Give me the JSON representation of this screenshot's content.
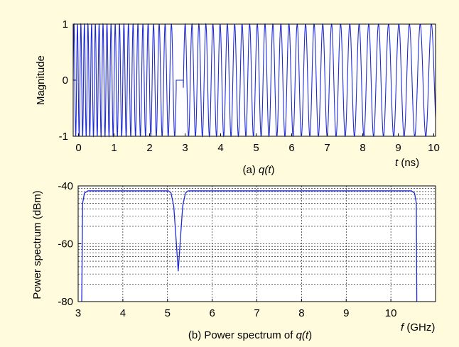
{
  "colors": {
    "background": "#fffbdc",
    "plot_bg": "#ffffff",
    "signal": "#1f2bd6",
    "grid": "#000000"
  },
  "chart_data": [
    {
      "id": "time",
      "type": "line",
      "caption_prefix": "(a) ",
      "caption_fn": "q(",
      "caption_var": "t",
      "caption_close": ")",
      "ylabel": "Magnitude",
      "xlabel_var": "t",
      "xlabel_unit": " (ns)",
      "xlim": [
        -0.15,
        10.05
      ],
      "ylim": [
        -1,
        1
      ],
      "x_ticks": [
        "0",
        "1",
        "2",
        "3",
        "4",
        "5",
        "6",
        "7",
        "8",
        "9",
        "10"
      ],
      "y_ticks": [
        "1",
        "0",
        "-1"
      ],
      "grid": false,
      "series": [
        {
          "description": "chirp",
          "segments": [
            {
              "t_start": -0.15,
              "t_end": 2.75,
              "freq_start_ghz": 10.6,
              "freq_end_ghz": 5.25
            },
            {
              "t_start": 2.75,
              "t_end": 2.95,
              "flat": 0
            },
            {
              "t_start": 2.95,
              "t_end": 10.05,
              "freq_start_ghz": 5.25,
              "freq_end_ghz": 3.1
            }
          ]
        }
      ]
    },
    {
      "id": "spectrum",
      "type": "line",
      "caption_prefix": "(b) Power spectrum of ",
      "caption_fn": "q(",
      "caption_var": "t",
      "caption_close": ")",
      "ylabel": "Power spectrum (dBm)",
      "xlabel_var": "f",
      "xlabel_unit": " (GHz)",
      "xlim": [
        3,
        11
      ],
      "ylim": [
        -80,
        -40
      ],
      "x_ticks": [
        "3",
        "4",
        "5",
        "6",
        "7",
        "8",
        "9",
        "10"
      ],
      "y_ticks": [
        "-40",
        "-60",
        "-80"
      ],
      "grid": true,
      "series": [
        {
          "points": [
            [
              3.08,
              -80
            ],
            [
              3.1,
              -46
            ],
            [
              3.14,
              -42.5
            ],
            [
              3.22,
              -41.7
            ],
            [
              5.02,
              -41.7
            ],
            [
              5.08,
              -42.5
            ],
            [
              5.14,
              -47
            ],
            [
              5.19,
              -58
            ],
            [
              5.24,
              -69.5
            ],
            [
              5.29,
              -58
            ],
            [
              5.34,
              -47
            ],
            [
              5.4,
              -42.5
            ],
            [
              5.46,
              -41.7
            ],
            [
              10.46,
              -41.7
            ],
            [
              10.53,
              -42.5
            ],
            [
              10.57,
              -46
            ],
            [
              10.58,
              -80
            ]
          ]
        }
      ]
    }
  ]
}
